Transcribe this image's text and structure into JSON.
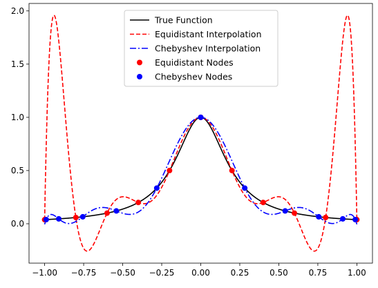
{
  "chart_data": {
    "type": "line",
    "title": "",
    "xlabel": "",
    "ylabel": "",
    "xlim": [
      -1.1,
      1.1
    ],
    "ylim": [
      -0.37,
      2.07
    ],
    "x_ticks": [
      -1.0,
      -0.75,
      -0.5,
      -0.25,
      0.0,
      0.25,
      0.5,
      0.75,
      1.0
    ],
    "x_tick_labels": [
      "−1.00",
      "−0.75",
      "−0.50",
      "−0.25",
      "0.00",
      "0.25",
      "0.50",
      "0.75",
      "1.00"
    ],
    "y_ticks": [
      0.0,
      0.5,
      1.0,
      1.5,
      2.0
    ],
    "y_tick_labels": [
      "0.0",
      "0.5",
      "1.0",
      "1.5",
      "2.0"
    ],
    "grid": false,
    "legend": {
      "placement": "top-center",
      "entries": [
        {
          "label": "True Function",
          "kind": "line",
          "color": "#000000",
          "dash": "solid"
        },
        {
          "label": "Equidistant Interpolation",
          "kind": "line",
          "color": "#ff0000",
          "dash": "dashed"
        },
        {
          "label": "Chebyshev Interpolation",
          "kind": "line",
          "color": "#0000ff",
          "dash": "dashdot"
        },
        {
          "label": "Equidistant Nodes",
          "kind": "marker",
          "color": "#ff0000"
        },
        {
          "label": "Chebyshev Nodes",
          "kind": "marker",
          "color": "#0000ff"
        }
      ]
    },
    "series": [
      {
        "name": "True Function",
        "function": "1/(1+25x^2)",
        "color": "#000000",
        "style": "solid"
      },
      {
        "name": "Equidistant Interpolation",
        "nodes": "equidistant",
        "node_count": 11,
        "color": "#ff0000",
        "style": "dashed"
      },
      {
        "name": "Chebyshev Interpolation",
        "nodes": "chebyshev",
        "node_count": 11,
        "color": "#0000ff",
        "style": "dashdot"
      }
    ],
    "scatter": [
      {
        "name": "Equidistant Nodes",
        "color": "#ff0000",
        "x": [
          -1.0,
          -0.8,
          -0.6,
          -0.4,
          -0.2,
          0.0,
          0.2,
          0.4,
          0.6,
          0.8,
          1.0
        ],
        "y": [
          0.0385,
          0.0588,
          0.1,
          0.2,
          0.5,
          1.0,
          0.5,
          0.2,
          0.1,
          0.0588,
          0.0385
        ]
      },
      {
        "name": "Chebyshev Nodes",
        "color": "#0000ff",
        "x": [
          -0.9898,
          -0.9096,
          -0.7557,
          -0.5406,
          -0.2817,
          0.0,
          0.2817,
          0.5406,
          0.7557,
          0.9096,
          0.9898
        ],
        "y": [
          0.0392,
          0.0461,
          0.0655,
          0.1205,
          0.3351,
          1.0,
          0.3351,
          0.1205,
          0.0655,
          0.0461,
          0.0392
        ]
      }
    ]
  }
}
